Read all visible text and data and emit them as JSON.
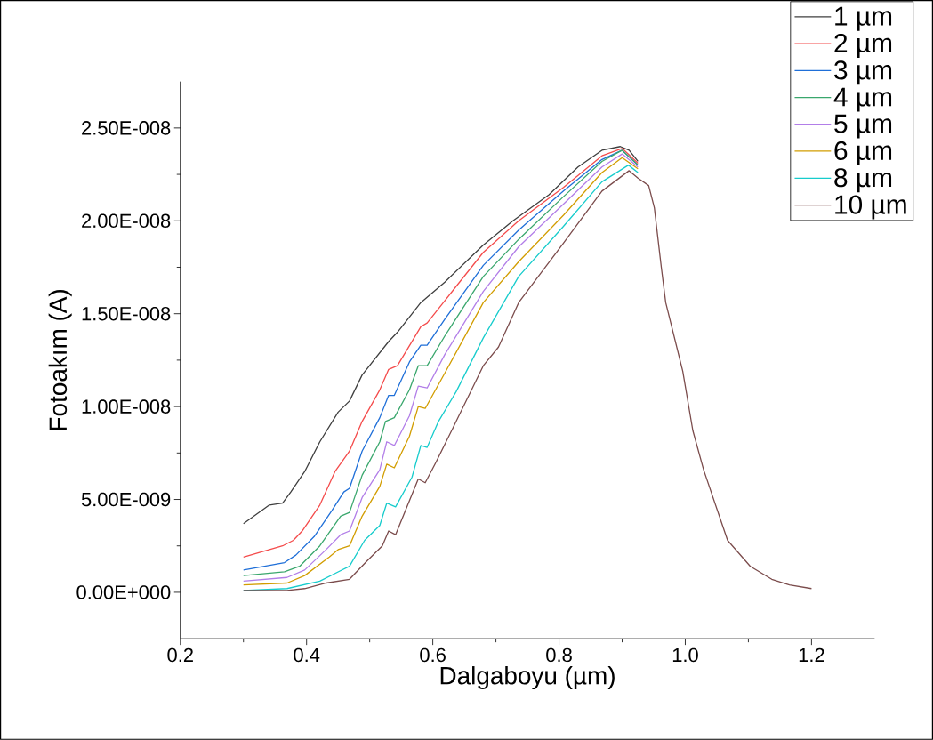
{
  "chart_data": {
    "type": "line",
    "xlabel": "Dalgaboyu (µm)",
    "ylabel": "Fotoakım (A)",
    "xlim": [
      0.2,
      1.3
    ],
    "ylim": [
      -2.5e-09,
      2.75e-08
    ],
    "xticks": [
      {
        "value": 0.2,
        "label": "0.2"
      },
      {
        "value": 0.4,
        "label": "0.4"
      },
      {
        "value": 0.6,
        "label": "0.6"
      },
      {
        "value": 0.8,
        "label": "0.8"
      },
      {
        "value": 1.0,
        "label": "1.0"
      },
      {
        "value": 1.2,
        "label": "1.2"
      }
    ],
    "yticks": [
      {
        "value": 0,
        "label": "0.00E+000"
      },
      {
        "value": 5e-09,
        "label": "5.00E-009"
      },
      {
        "value": 1e-08,
        "label": "1.00E-008"
      },
      {
        "value": 1.5e-08,
        "label": "1.50E-008"
      },
      {
        "value": 2e-08,
        "label": "2.00E-008"
      },
      {
        "value": 2.5e-08,
        "label": "2.50E-008"
      }
    ],
    "grid": false,
    "legend": "top right",
    "marker": "none",
    "line_style": "solid",
    "series": [
      {
        "name": "1 µm",
        "color": "#3f3f3f",
        "x": [
          0.3,
          0.341,
          0.362,
          0.375,
          0.397,
          0.421,
          0.45,
          0.468,
          0.488,
          0.53,
          0.544,
          0.581,
          0.619,
          0.68,
          0.727,
          0.784,
          0.83,
          0.868,
          0.897,
          0.911,
          0.925
        ],
        "values": [
          3.7e-09,
          4.7e-09,
          4.8e-09,
          5.4e-09,
          6.5e-09,
          8.1e-09,
          9.7e-09,
          1.03e-08,
          1.17e-08,
          1.35e-08,
          1.4e-08,
          1.56e-08,
          1.67e-08,
          1.87e-08,
          2e-08,
          2.14e-08,
          2.29e-08,
          2.38e-08,
          2.4e-08,
          2.38e-08,
          2.32e-08
        ]
      },
      {
        "name": "2 µm",
        "color": "#f44b4b",
        "x": [
          0.3,
          0.362,
          0.379,
          0.393,
          0.421,
          0.445,
          0.468,
          0.488,
          0.516,
          0.53,
          0.544,
          0.581,
          0.591,
          0.619,
          0.68,
          0.736,
          0.807,
          0.868,
          0.9,
          0.925
        ],
        "values": [
          1.9e-09,
          2.5e-09,
          2.8e-09,
          3.3e-09,
          4.7e-09,
          6.5e-09,
          7.6e-09,
          9.2e-09,
          1.09e-08,
          1.2e-08,
          1.22e-08,
          1.43e-08,
          1.45e-08,
          1.57e-08,
          1.83e-08,
          2e-08,
          2.18e-08,
          2.35e-08,
          2.39e-08,
          2.31e-08
        ]
      },
      {
        "name": "3 µm",
        "color": "#1f6fd8",
        "x": [
          0.3,
          0.365,
          0.383,
          0.412,
          0.44,
          0.459,
          0.468,
          0.488,
          0.516,
          0.53,
          0.539,
          0.563,
          0.581,
          0.591,
          0.619,
          0.68,
          0.736,
          0.807,
          0.868,
          0.9,
          0.925
        ],
        "values": [
          1.2e-09,
          1.6e-09,
          2e-09,
          3e-09,
          4.4e-09,
          5.4e-09,
          5.6e-09,
          7.6e-09,
          9.4e-09,
          1.06e-08,
          1.06e-08,
          1.24e-08,
          1.33e-08,
          1.33e-08,
          1.47e-08,
          1.76e-08,
          1.95e-08,
          2.16e-08,
          2.33e-08,
          2.38e-08,
          2.3e-08
        ]
      },
      {
        "name": "4 µm",
        "color": "#3aa76d",
        "x": [
          0.3,
          0.365,
          0.389,
          0.421,
          0.454,
          0.468,
          0.488,
          0.516,
          0.525,
          0.539,
          0.563,
          0.577,
          0.591,
          0.619,
          0.68,
          0.736,
          0.807,
          0.868,
          0.9,
          0.925
        ],
        "values": [
          9e-10,
          1.1e-09,
          1.4e-09,
          2.5e-09,
          4.1e-09,
          4.3e-09,
          6.3e-09,
          8.1e-09,
          9.2e-09,
          9.4e-09,
          1.09e-08,
          1.22e-08,
          1.22e-08,
          1.38e-08,
          1.7e-08,
          1.9e-08,
          2.13e-08,
          2.32e-08,
          2.38e-08,
          2.3e-08
        ]
      },
      {
        "name": "5 µm",
        "color": "#b27ee8",
        "x": [
          0.3,
          0.369,
          0.397,
          0.431,
          0.454,
          0.468,
          0.488,
          0.516,
          0.527,
          0.539,
          0.563,
          0.577,
          0.591,
          0.619,
          0.68,
          0.736,
          0.807,
          0.868,
          0.9,
          0.925
        ],
        "values": [
          6e-10,
          8e-10,
          1.2e-09,
          2.3e-09,
          3.1e-09,
          3.3e-09,
          5.1e-09,
          6.6e-09,
          8.1e-09,
          7.9e-09,
          9.5e-09,
          1.11e-08,
          1.1e-08,
          1.28e-08,
          1.62e-08,
          1.86e-08,
          2.09e-08,
          2.29e-08,
          2.36e-08,
          2.29e-08
        ]
      },
      {
        "name": "6 µm",
        "color": "#d29d00",
        "x": [
          0.3,
          0.369,
          0.397,
          0.436,
          0.45,
          0.468,
          0.488,
          0.516,
          0.527,
          0.539,
          0.563,
          0.577,
          0.588,
          0.619,
          0.68,
          0.736,
          0.807,
          0.868,
          0.9,
          0.925
        ],
        "values": [
          4e-10,
          5e-10,
          9e-10,
          1.9e-09,
          2.3e-09,
          2.5e-09,
          4.1e-09,
          5.7e-09,
          6.9e-09,
          6.7e-09,
          8.4e-09,
          1e-08,
          9.9e-09,
          1.18e-08,
          1.56e-08,
          1.78e-08,
          2.03e-08,
          2.26e-08,
          2.34e-08,
          2.28e-08
        ]
      },
      {
        "name": "8 µm",
        "color": "#17cccc",
        "x": [
          0.3,
          0.369,
          0.421,
          0.45,
          0.468,
          0.492,
          0.516,
          0.527,
          0.541,
          0.567,
          0.581,
          0.591,
          0.609,
          0.637,
          0.68,
          0.736,
          0.807,
          0.868,
          0.91,
          0.925
        ],
        "values": [
          1e-10,
          2e-10,
          6e-10,
          1.1e-09,
          1.4e-09,
          2.8e-09,
          3.6e-09,
          4.8e-09,
          4.6e-09,
          6.2e-09,
          7.9e-09,
          7.8e-09,
          9.2e-09,
          1.08e-08,
          1.37e-08,
          1.7e-08,
          1.97e-08,
          2.21e-08,
          2.3e-08,
          2.26e-08
        ]
      },
      {
        "name": "10 µm",
        "color": "#7b4c4c",
        "x": [
          0.3,
          0.369,
          0.397,
          0.431,
          0.468,
          0.496,
          0.52,
          0.53,
          0.541,
          0.577,
          0.588,
          0.605,
          0.637,
          0.68,
          0.704,
          0.736,
          0.807,
          0.868,
          0.911,
          0.925,
          0.942,
          0.951,
          0.962,
          0.969,
          0.996,
          1.012,
          1.029,
          1.067,
          1.103,
          1.137,
          1.165,
          1.2
        ],
        "values": [
          1e-10,
          1e-10,
          2e-10,
          5e-10,
          7e-10,
          1.7e-09,
          2.5e-09,
          3.3e-09,
          3.1e-09,
          6.1e-09,
          5.9e-09,
          7e-09,
          9.2e-09,
          1.22e-08,
          1.32e-08,
          1.56e-08,
          1.88e-08,
          2.16e-08,
          2.27e-08,
          2.23e-08,
          2.19e-08,
          2.07e-08,
          1.75e-08,
          1.56e-08,
          1.19e-08,
          8.7e-09,
          6.6e-09,
          2.8e-09,
          1.4e-09,
          7e-10,
          4e-10,
          2e-10
        ]
      }
    ]
  }
}
